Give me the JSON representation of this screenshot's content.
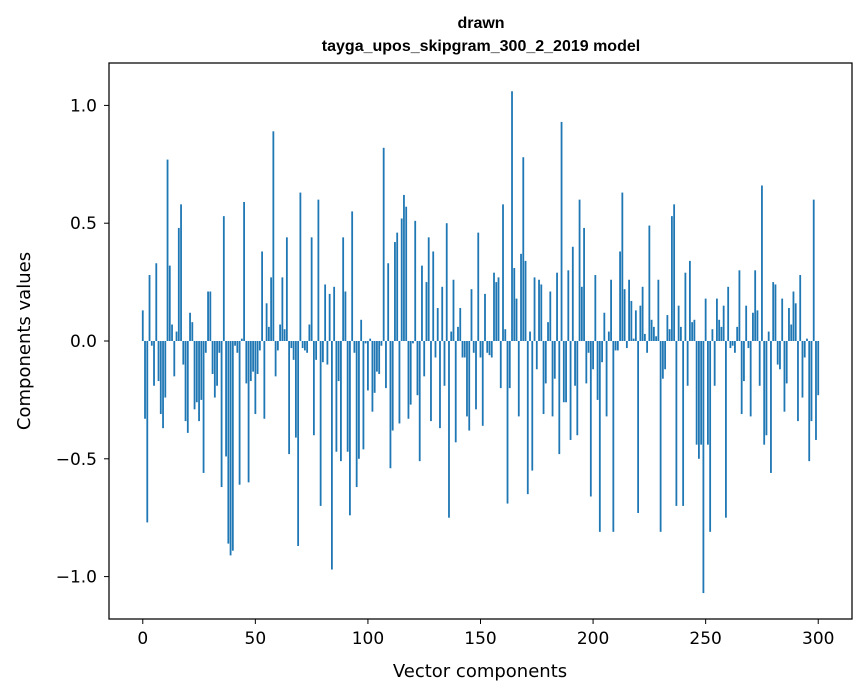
{
  "chart_data": {
    "type": "bar",
    "title_lines": [
      "drawn",
      "tayga_upos_skipgram_300_2_2019 model"
    ],
    "xlabel": "Vector components",
    "ylabel": "Components values",
    "xlim": [
      -15,
      315
    ],
    "ylim": [
      -1.18,
      1.18
    ],
    "xticks": [
      0,
      50,
      100,
      150,
      200,
      250,
      300
    ],
    "xtick_labels": [
      "0",
      "50",
      "100",
      "150",
      "200",
      "250",
      "300"
    ],
    "yticks": [
      -1.0,
      -0.5,
      0.0,
      0.5,
      1.0
    ],
    "ytick_labels": [
      "−1.0",
      "−0.5",
      "0.0",
      "0.5",
      "1.0"
    ],
    "bar_color": "#1f77b4",
    "values": [
      0.13,
      -0.33,
      -0.77,
      0.28,
      -0.02,
      -0.19,
      0.33,
      -0.17,
      -0.31,
      -0.37,
      -0.24,
      0.77,
      0.32,
      0.07,
      -0.15,
      0.04,
      0.48,
      0.58,
      -0.1,
      -0.34,
      -0.39,
      0.12,
      0.08,
      -0.29,
      -0.26,
      -0.34,
      -0.25,
      -0.56,
      -0.05,
      0.21,
      0.21,
      -0.14,
      -0.24,
      -0.19,
      -0.05,
      -0.62,
      0.53,
      -0.49,
      -0.86,
      -0.91,
      -0.89,
      -0.02,
      -0.05,
      -0.61,
      0.01,
      0.59,
      -0.18,
      -0.6,
      -0.17,
      -0.13,
      -0.31,
      -0.14,
      -0.04,
      0.38,
      -0.33,
      0.16,
      0.06,
      0.27,
      0.89,
      -0.15,
      -0.04,
      0.07,
      0.27,
      0.05,
      0.44,
      -0.48,
      -0.03,
      -0.08,
      -0.41,
      -0.87,
      0.63,
      -0.03,
      -0.04,
      -0.05,
      0.07,
      0.44,
      -0.4,
      -0.08,
      0.6,
      -0.7,
      -0.09,
      0.24,
      -0.1,
      0.2,
      -0.97,
      0.23,
      -0.47,
      -0.17,
      -0.51,
      0.44,
      0.21,
      -0.47,
      -0.74,
      0.55,
      -0.05,
      -0.62,
      -0.5,
      0.09,
      -0.46,
      -0.01,
      -0.21,
      0.01,
      -0.3,
      -0.22,
      -0.13,
      -0.14,
      -0.02,
      0.82,
      -0.2,
      0.33,
      -0.54,
      -0.38,
      0.42,
      0.46,
      -0.35,
      0.52,
      0.62,
      0.57,
      -0.33,
      -0.27,
      -0.01,
      0.51,
      -0.23,
      -0.51,
      0.32,
      -0.15,
      0.25,
      0.44,
      -0.34,
      0.38,
      -0.07,
      0.14,
      -0.37,
      0.23,
      -0.19,
      0.5,
      -0.75,
      0.04,
      0.26,
      -0.43,
      0.06,
      0.14,
      -0.07,
      -0.07,
      -0.32,
      -0.38,
      0.22,
      -0.05,
      -0.29,
      0.46,
      -0.07,
      -0.36,
      0.2,
      -0.05,
      -0.06,
      -0.07,
      0.29,
      0.25,
      0.27,
      -0.2,
      0.58,
      0.05,
      -0.69,
      -0.2,
      1.06,
      0.31,
      0.18,
      -0.32,
      0.37,
      0.78,
      0.34,
      -0.65,
      0.04,
      -0.55,
      0.27,
      -0.12,
      0.26,
      0.24,
      -0.31,
      -0.18,
      0.08,
      0.21,
      -0.32,
      -0.16,
      0.29,
      -0.48,
      0.93,
      -0.26,
      -0.26,
      0.3,
      -0.42,
      0.4,
      -0.19,
      -0.4,
      0.6,
      0.23,
      0.48,
      -0.18,
      -0.05,
      -0.66,
      -0.12,
      0.28,
      -0.25,
      -0.81,
      -0.09,
      0.12,
      -0.32,
      0.04,
      0.26,
      -0.81,
      -0.04,
      -0.04,
      0.38,
      0.63,
      0.22,
      -0.03,
      0.26,
      0.17,
      0.01,
      0.13,
      -0.73,
      0.15,
      0.23,
      0.03,
      -0.05,
      0.49,
      0.09,
      0.06,
      0.02,
      0.26,
      -0.81,
      -0.16,
      -0.12,
      0.11,
      0.05,
      0.53,
      0.58,
      -0.7,
      0.15,
      0.06,
      -0.7,
      0.29,
      -0.19,
      0.34,
      0.08,
      0.09,
      -0.44,
      -0.5,
      -0.44,
      -1.07,
      0.18,
      -0.44,
      -0.81,
      0.05,
      -0.19,
      0.18,
      0.09,
      0.06,
      0.15,
      -0.75,
      0.23,
      -0.03,
      -0.02,
      -0.05,
      0.06,
      0.3,
      -0.31,
      -0.17,
      0.15,
      -0.03,
      -0.32,
      0.12,
      0.3,
      0.13,
      -0.19,
      0.66,
      -0.44,
      -0.4,
      0.04,
      -0.56,
      0.25,
      0.24,
      -0.1,
      -0.12,
      0.18,
      -0.3,
      -0.18,
      0.14,
      0.07,
      0.21,
      0.16,
      -0.34,
      0.28,
      -0.24,
      -0.07,
      0.01,
      -0.51,
      -0.34,
      0.6,
      -0.42,
      -0.23
    ]
  }
}
